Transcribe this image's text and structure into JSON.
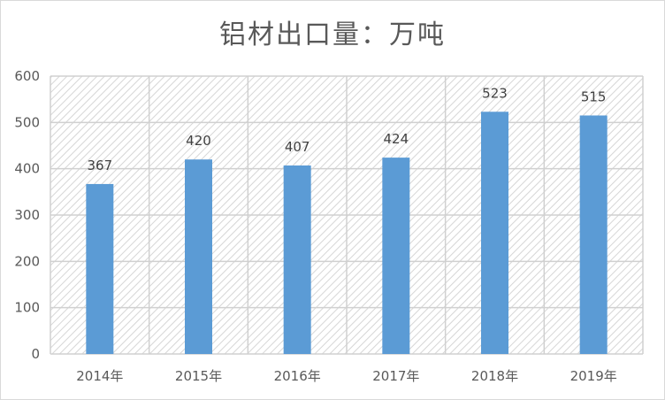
{
  "chart_data": {
    "type": "bar",
    "title": "铝材出口量：万吨",
    "categories": [
      "2014年",
      "2015年",
      "2016年",
      "2017年",
      "2018年",
      "2019年"
    ],
    "values": [
      367,
      420,
      407,
      424,
      523,
      515
    ],
    "ylim": [
      0,
      600
    ],
    "yticks": [
      0,
      100,
      200,
      300,
      400,
      500,
      600
    ],
    "grid": true,
    "bar_color": "#5b9bd5",
    "data_labels": true,
    "background_pattern": "diagonal-hatch"
  }
}
